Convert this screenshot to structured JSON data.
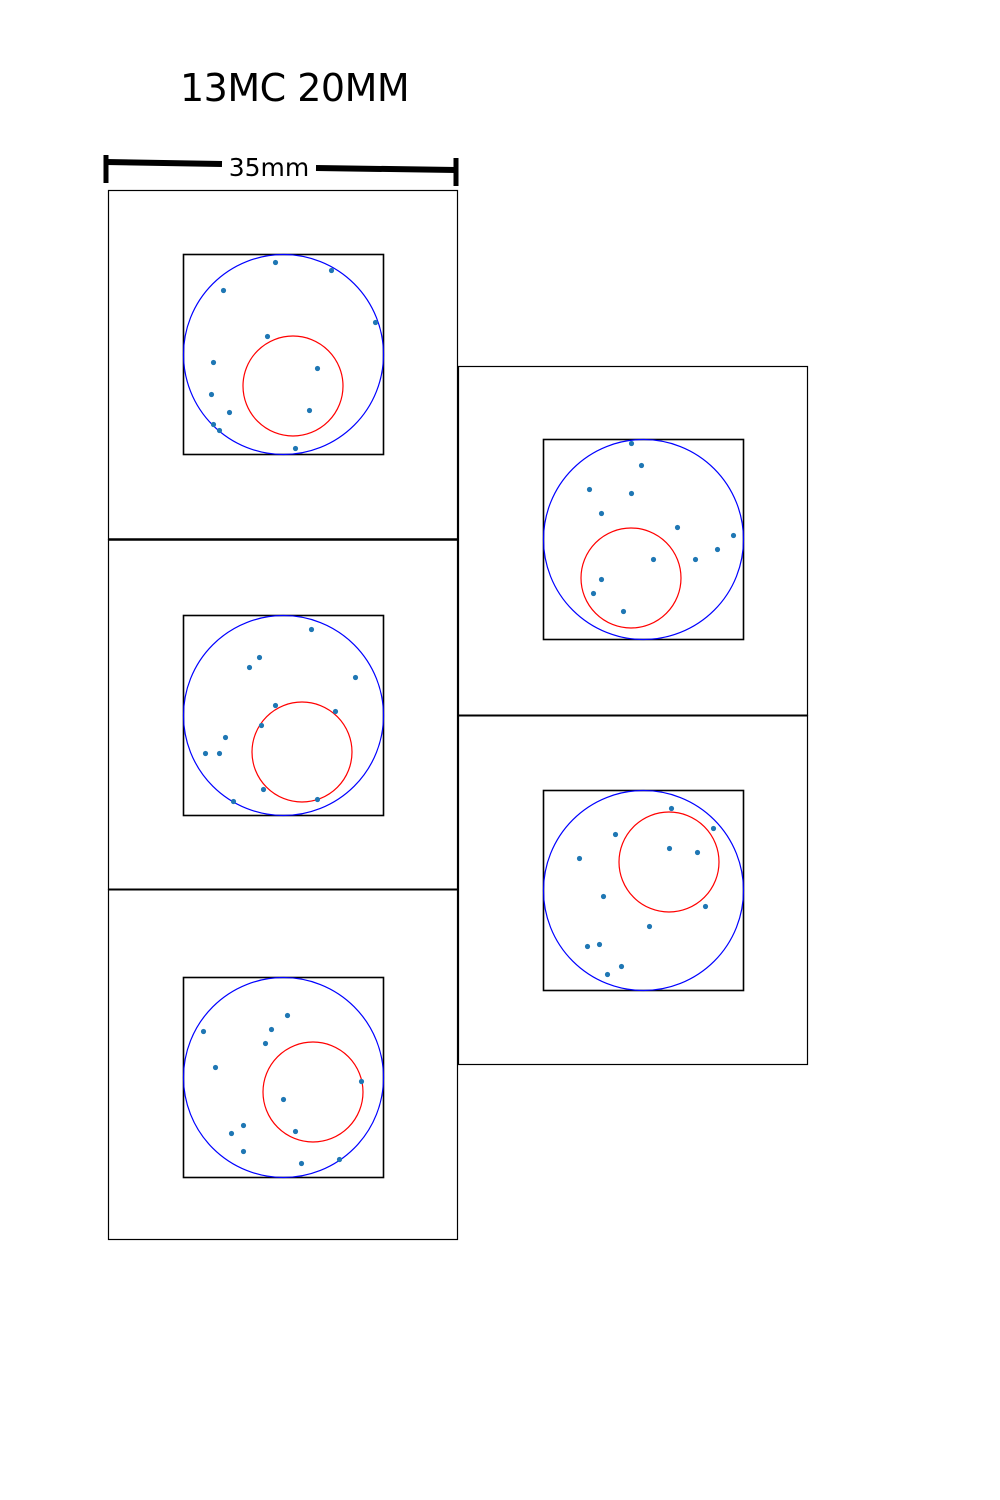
{
  "title": "13MC 20MM",
  "scale_label": "35mm",
  "colors": {
    "outer_circle": "#0000ff",
    "inner_circle": "#ff0000",
    "dots": "#1f77b4",
    "frame": "#000000"
  },
  "panels": [
    {
      "name": "panel-1",
      "dots": [
        [
          0.46,
          0.04
        ],
        [
          0.74,
          0.08
        ],
        [
          0.2,
          0.18
        ],
        [
          0.96,
          0.34
        ],
        [
          0.42,
          0.41
        ],
        [
          0.15,
          0.54
        ],
        [
          0.67,
          0.57
        ],
        [
          0.14,
          0.7
        ],
        [
          0.23,
          0.79
        ],
        [
          0.63,
          0.78
        ],
        [
          0.15,
          0.85
        ],
        [
          0.18,
          0.88
        ],
        [
          0.56,
          0.97
        ]
      ]
    },
    {
      "name": "panel-2",
      "dots": [
        [
          0.64,
          0.07
        ],
        [
          0.38,
          0.21
        ],
        [
          0.33,
          0.26
        ],
        [
          0.86,
          0.31
        ],
        [
          0.46,
          0.45
        ],
        [
          0.76,
          0.48
        ],
        [
          0.39,
          0.55
        ],
        [
          0.21,
          0.61
        ],
        [
          0.11,
          0.69
        ],
        [
          0.18,
          0.69
        ],
        [
          0.4,
          0.87
        ],
        [
          0.25,
          0.93
        ],
        [
          0.67,
          0.92
        ]
      ]
    },
    {
      "name": "panel-3",
      "dots": [
        [
          0.52,
          0.19
        ],
        [
          0.1,
          0.27
        ],
        [
          0.44,
          0.26
        ],
        [
          0.41,
          0.33
        ],
        [
          0.16,
          0.45
        ],
        [
          0.89,
          0.52
        ],
        [
          0.5,
          0.61
        ],
        [
          0.56,
          0.77
        ],
        [
          0.3,
          0.74
        ],
        [
          0.24,
          0.78
        ],
        [
          0.3,
          0.87
        ],
        [
          0.59,
          0.93
        ],
        [
          0.78,
          0.91
        ]
      ]
    },
    {
      "name": "panel-4",
      "dots": [
        [
          0.44,
          0.02
        ],
        [
          0.49,
          0.13
        ],
        [
          0.23,
          0.25
        ],
        [
          0.44,
          0.27
        ],
        [
          0.29,
          0.37
        ],
        [
          0.67,
          0.44
        ],
        [
          0.95,
          0.48
        ],
        [
          0.87,
          0.55
        ],
        [
          0.76,
          0.6
        ],
        [
          0.55,
          0.6
        ],
        [
          0.29,
          0.7
        ],
        [
          0.25,
          0.77
        ],
        [
          0.4,
          0.86
        ]
      ]
    },
    {
      "name": "panel-5",
      "dots": [
        [
          0.64,
          0.09
        ],
        [
          0.85,
          0.19
        ],
        [
          0.36,
          0.22
        ],
        [
          0.63,
          0.29
        ],
        [
          0.77,
          0.31
        ],
        [
          0.18,
          0.34
        ],
        [
          0.3,
          0.53
        ],
        [
          0.81,
          0.58
        ],
        [
          0.53,
          0.68
        ],
        [
          0.22,
          0.78
        ],
        [
          0.28,
          0.77
        ],
        [
          0.39,
          0.88
        ],
        [
          0.32,
          0.92
        ]
      ]
    }
  ]
}
